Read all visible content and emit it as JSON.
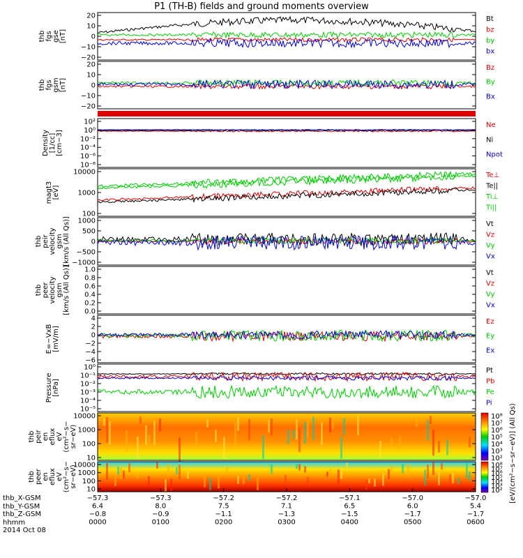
{
  "title": "P1 (TH-B) fields and ground moments overview",
  "colors": {
    "black": "#000000",
    "red": "#e00000",
    "green": "#00cc00",
    "blue": "#0000dd"
  },
  "chart_data": [
    {
      "type": "line",
      "ylabel": [
        "thb",
        "fgs",
        "gse",
        "[nT]"
      ],
      "yticks": [
        "20",
        "10",
        "0",
        "−10",
        "−20"
      ],
      "ylim": [
        -20,
        20
      ],
      "series": [
        {
          "name": "Bt",
          "color": "black"
        },
        {
          "name": "bz",
          "color": "red"
        },
        {
          "name": "by",
          "color": "green"
        },
        {
          "name": "bx",
          "color": "blue"
        }
      ]
    },
    {
      "type": "line",
      "ylabel": [
        "thb",
        "fgs",
        "gsm",
        "[nT]"
      ],
      "yticks": [
        "20",
        "10",
        "0",
        "−10",
        "−20"
      ],
      "ylim": [
        -20,
        20
      ],
      "series": [
        {
          "name": "Bz",
          "color": "red"
        },
        {
          "name": "By",
          "color": "green"
        },
        {
          "name": "Bx",
          "color": "blue"
        }
      ]
    },
    {
      "type": "line",
      "ylabel": [
        "Density",
        "[1/cc]",
        "[cm−3]"
      ],
      "yticks": [
        "10²",
        "10⁰",
        "10⁻²",
        "10⁻⁴",
        "10⁻⁶",
        "10⁻⁸"
      ],
      "ylog": true,
      "series": [
        {
          "name": "Ne",
          "color": "red"
        },
        {
          "name": "Ni",
          "color": "black"
        },
        {
          "name": "Npot",
          "color": "blue"
        }
      ]
    },
    {
      "type": "line",
      "ylabel": [
        "magt3",
        "[eV]"
      ],
      "yticks": [
        "10000",
        "1000",
        "100"
      ],
      "ylog": true,
      "series": [
        {
          "name": "Te⊥",
          "color": "red"
        },
        {
          "name": "Te||",
          "color": "black"
        },
        {
          "name": "Ti⊥",
          "color": "green"
        },
        {
          "name": "Ti||",
          "color": "green"
        }
      ]
    },
    {
      "type": "line",
      "ylabel": [
        "thb",
        "peir",
        "velocity",
        "gsm",
        "[km/s (All Qs)]"
      ],
      "yticks": [
        "1000",
        "500",
        "0",
        "−500",
        "−1000"
      ],
      "ylim": [
        -1000,
        1000
      ],
      "series": [
        {
          "name": "Vt",
          "color": "black"
        },
        {
          "name": "Vz",
          "color": "red"
        },
        {
          "name": "Vy",
          "color": "green"
        },
        {
          "name": "Vx",
          "color": "blue"
        }
      ]
    },
    {
      "type": "line",
      "ylabel": [
        "thb",
        "peer",
        "velocity",
        "gsm",
        "[km/s (All Qs)]"
      ],
      "yticks": [
        "1.0",
        "0.8",
        "0.6",
        "0.4",
        "0.2",
        "0.0"
      ],
      "ylim": [
        0,
        1
      ],
      "series": [
        {
          "name": "Vt",
          "color": "black"
        },
        {
          "name": "Vz",
          "color": "red"
        },
        {
          "name": "Vy",
          "color": "green"
        },
        {
          "name": "Vx",
          "color": "blue"
        }
      ]
    },
    {
      "type": "line",
      "ylabel": [
        "E=−VxB",
        "[mV/m]"
      ],
      "yticks": [
        "4",
        "2",
        "0",
        "−2",
        "−4",
        "−6"
      ],
      "ylim": [
        -6,
        4
      ],
      "series": [
        {
          "name": "Ez",
          "color": "red"
        },
        {
          "name": "Ey",
          "color": "green"
        },
        {
          "name": "Ex",
          "color": "blue"
        }
      ]
    },
    {
      "type": "line",
      "ylabel": [
        "Pressure",
        "[nPa]"
      ],
      "yticks": [
        "10⁰",
        "10⁻¹",
        "10⁻²",
        "10⁻³",
        "10⁻⁴",
        "10⁻⁵"
      ],
      "ylog": true,
      "series": [
        {
          "name": "Pt",
          "color": "black"
        },
        {
          "name": "Pb",
          "color": "red"
        },
        {
          "name": "Pe",
          "color": "green"
        },
        {
          "name": "Pi",
          "color": "blue"
        }
      ]
    },
    {
      "type": "heatmap",
      "ylabel": [
        "thb",
        "peir",
        "en",
        "eflux",
        "eV",
        "(cm²−s−",
        "sr−eV)"
      ],
      "yticks": [
        "10000",
        "1000",
        "100",
        "10"
      ],
      "ylog": true,
      "colorbar": [
        "10⁸",
        "10⁷",
        "10⁶",
        "10⁵",
        "10⁴",
        "10³",
        "10²"
      ]
    },
    {
      "type": "heatmap",
      "ylabel": [
        "thb",
        "peer",
        "en",
        "eflux",
        "eV",
        "(cm²−s−",
        "sr−eV)"
      ],
      "yticks": [
        "10000",
        "1000",
        "100",
        "10"
      ],
      "ylog": true,
      "colorbar": [
        "10⁸",
        "10⁷",
        "10⁶",
        "10⁵",
        "10⁴",
        "10³",
        "10²"
      ]
    }
  ],
  "colorbar_label": "[eV/(cm²−s−sr−eV)] (All Qs)",
  "footer": {
    "row_labels": [
      "thb_X-GSM",
      "thb_Y-GSM",
      "thb_Z-GSM",
      "hhmm",
      "2014 Oct 08"
    ],
    "ticks": [
      {
        "x": "−57.3",
        "y": "6.4",
        "z": "−0.8",
        "t": "0000"
      },
      {
        "x": "−57.3",
        "y": "8.0",
        "z": "−0.9",
        "t": "0100"
      },
      {
        "x": "−57.2",
        "y": "7.5",
        "z": "−1.1",
        "t": "0200"
      },
      {
        "x": "−57.2",
        "y": "7.1",
        "z": "−1.3",
        "t": "0300"
      },
      {
        "x": "−57.1",
        "y": "6.5",
        "z": "−1.5",
        "t": "0400"
      },
      {
        "x": "−57.0",
        "y": "6.0",
        "z": "−1.7",
        "t": "0500"
      },
      {
        "x": "−57.0",
        "y": "5.4",
        "z": "−1.7",
        "t": "0600"
      }
    ]
  }
}
